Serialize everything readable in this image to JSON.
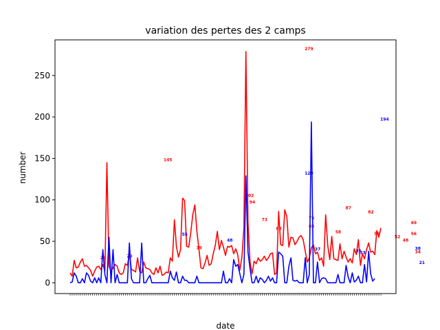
{
  "chart_data": {
    "type": "line",
    "title": "variation des pertes des 2 camps",
    "xlabel": "date",
    "ylabel": "number",
    "ylim": [
      -13,
      293
    ],
    "yticks": [
      0,
      50,
      100,
      150,
      200,
      250
    ],
    "x_tick_labels": "dense rotated date labels (illegible)",
    "series": [
      {
        "color": "#ff0000",
        "values": [
          12,
          8,
          27,
          18,
          19,
          25,
          29,
          20,
          21,
          18,
          15,
          8,
          14,
          19,
          20,
          16,
          22,
          14,
          145,
          20,
          14,
          18,
          22,
          20,
          12,
          10,
          12,
          23,
          21,
          35,
          16,
          15,
          13,
          30,
          14,
          12,
          25,
          18,
          17,
          16,
          12,
          10,
          18,
          12,
          20,
          9,
          10,
          13,
          12,
          30,
          26,
          76,
          44,
          31,
          40,
          102,
          99,
          44,
          43,
          60,
          82,
          94,
          62,
          41,
          18,
          17,
          24,
          33,
          21,
          23,
          35,
          45,
          62,
          40,
          51,
          43,
          33,
          44,
          43,
          45,
          35,
          41,
          34,
          15,
          30,
          67,
          279,
          74,
          25,
          11,
          26,
          23,
          30,
          26,
          28,
          32,
          27,
          30,
          35,
          36,
          10,
          12,
          86,
          46,
          45,
          88,
          80,
          43,
          55,
          54,
          46,
          50,
          55,
          57,
          52,
          38,
          25,
          30,
          42,
          46,
          35,
          37,
          27,
          30,
          20,
          82,
          45,
          28,
          56,
          29,
          28,
          27,
          47,
          29,
          38,
          31,
          25,
          29,
          24,
          41,
          34,
          52,
          21,
          35,
          29,
          40,
          48,
          37,
          38,
          34,
          63,
          55,
          66
        ],
        "labels": [
          [
            12,
            27
          ],
          [
            25,
            29
          ],
          [
            43,
            145
          ],
          [
            59,
            39
          ],
          [
            83,
            102
          ],
          [
            85,
            94
          ],
          [
            91,
            73
          ],
          [
            98,
            62
          ],
          [
            112,
            279
          ],
          [
            114,
            75
          ],
          [
            114,
            65
          ],
          [
            132,
            87
          ],
          [
            127,
            58
          ],
          [
            143,
            82
          ],
          [
            146,
            56
          ],
          [
            156,
            52
          ],
          [
            160,
            48
          ],
          [
            164,
            69
          ],
          [
            166,
            34
          ],
          [
            164,
            56
          ]
        ]
      },
      {
        "color": "#0000ff",
        "values": [
          0,
          1,
          12,
          8,
          0,
          0,
          5,
          0,
          12,
          9,
          2,
          0,
          6,
          0,
          6,
          0,
          40,
          10,
          0,
          55,
          0,
          40,
          0,
          10,
          0,
          0,
          0,
          0,
          0,
          48,
          5,
          0,
          0,
          0,
          0,
          48,
          0,
          0,
          5,
          9,
          0,
          0,
          0,
          0,
          0,
          0,
          0,
          0,
          0,
          14,
          6,
          3,
          13,
          0,
          0,
          8,
          3,
          3,
          0,
          0,
          0,
          0,
          8,
          0,
          0,
          0,
          0,
          0,
          0,
          0,
          0,
          0,
          0,
          0,
          0,
          14,
          0,
          0,
          5,
          0,
          28,
          20,
          22,
          11,
          0,
          10,
          129,
          37,
          17,
          0,
          0,
          8,
          0,
          6,
          4,
          0,
          3,
          8,
          2,
          6,
          0,
          0,
          37,
          35,
          32,
          0,
          0,
          20,
          30,
          3,
          2,
          3,
          0,
          0,
          0,
          30,
          0,
          10,
          194,
          0,
          0,
          25,
          0,
          5,
          6,
          5,
          0,
          0,
          0,
          0,
          0,
          10,
          0,
          0,
          0,
          21,
          7,
          0,
          12,
          1,
          3,
          8,
          0,
          0,
          22,
          1,
          38,
          11,
          2,
          5
        ],
        "labels": [
          [
            52,
            55
          ],
          [
            74,
            48
          ],
          [
            112,
            129
          ],
          [
            117,
            37
          ],
          [
            137,
            35
          ],
          [
            139,
            33
          ],
          [
            149,
            194
          ],
          [
            166,
            38
          ],
          [
            168,
            21
          ]
        ]
      }
    ]
  }
}
